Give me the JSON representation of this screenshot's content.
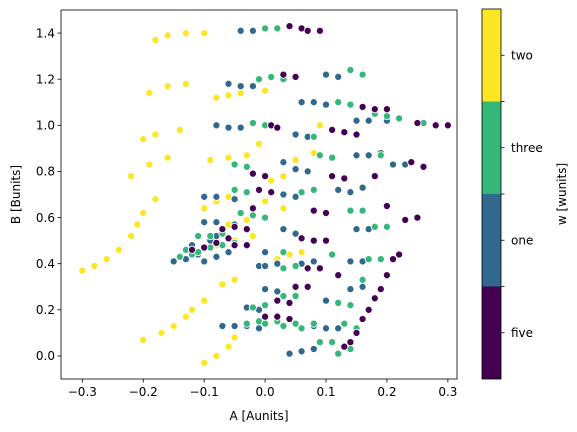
{
  "chart_data": {
    "type": "scatter",
    "title": "",
    "xlabel": "A [Aunits]",
    "ylabel": "B [Bunits]",
    "colorbar_label": "w [wunits]",
    "xlim": [
      -0.335,
      0.315
    ],
    "ylim": [
      -0.1,
      1.5
    ],
    "x_ticks": [
      -0.3,
      -0.2,
      -0.1,
      0.0,
      0.1,
      0.2,
      0.3
    ],
    "x_tick_labels": [
      "−0.3",
      "−0.2",
      "−0.1",
      "0.0",
      "0.1",
      "0.2",
      "0.3"
    ],
    "y_ticks": [
      0.0,
      0.2,
      0.4,
      0.6,
      0.8,
      1.0,
      1.2,
      1.4
    ],
    "y_tick_labels": [
      "0.0",
      "0.2",
      "0.4",
      "0.6",
      "0.8",
      "1.0",
      "1.2",
      "1.4"
    ],
    "grid": false,
    "marker_edge_color": "#ffffff",
    "categories": [
      "five",
      "one",
      "three",
      "two"
    ],
    "colors": {
      "five": "#440154",
      "one": "#31688e",
      "three": "#35b779",
      "two": "#fde725"
    },
    "series": [
      {
        "name": "two",
        "points": [
          [
            -0.3,
            0.37
          ],
          [
            -0.28,
            0.39
          ],
          [
            -0.26,
            0.42
          ],
          [
            -0.24,
            0.46
          ],
          [
            -0.22,
            0.52
          ],
          [
            -0.21,
            0.57
          ],
          [
            -0.2,
            0.62
          ],
          [
            -0.18,
            0.68
          ],
          [
            -0.22,
            0.78
          ],
          [
            -0.19,
            0.83
          ],
          [
            -0.16,
            0.86
          ],
          [
            -0.2,
            0.94
          ],
          [
            -0.18,
            0.96
          ],
          [
            -0.14,
            0.98
          ],
          [
            -0.19,
            1.14
          ],
          [
            -0.16,
            1.17
          ],
          [
            -0.13,
            1.18
          ],
          [
            -0.18,
            1.37
          ],
          [
            -0.16,
            1.39
          ],
          [
            -0.13,
            1.4
          ],
          [
            -0.1,
            1.4
          ],
          [
            -0.2,
            0.07
          ],
          [
            -0.17,
            0.1
          ],
          [
            -0.15,
            0.13
          ],
          [
            -0.13,
            0.17
          ],
          [
            -0.12,
            0.2
          ],
          [
            -0.1,
            0.24
          ],
          [
            -0.1,
            -0.03
          ],
          [
            -0.08,
            0.0
          ],
          [
            -0.06,
            0.04
          ],
          [
            -0.05,
            0.08
          ],
          [
            -0.07,
            0.31
          ],
          [
            -0.05,
            0.33
          ],
          [
            -0.08,
            0.48
          ],
          [
            -0.05,
            0.5
          ],
          [
            -0.02,
            0.52
          ],
          [
            -0.06,
            0.57
          ],
          [
            -0.03,
            0.59
          ],
          [
            -0.1,
            0.64
          ],
          [
            -0.08,
            0.67
          ],
          [
            -0.06,
            0.69
          ],
          [
            -0.09,
            0.85
          ],
          [
            -0.06,
            0.86
          ],
          [
            -0.03,
            0.87
          ],
          [
            -0.08,
            1.12
          ],
          [
            -0.06,
            1.13
          ],
          [
            -0.04,
            1.14
          ],
          [
            0.0,
            1.15
          ],
          [
            0.02,
            0.42
          ],
          [
            0.04,
            0.44
          ],
          [
            0.06,
            0.45
          ],
          [
            0.03,
            0.64
          ],
          [
            0.01,
            0.76
          ],
          [
            0.03,
            0.78
          ],
          [
            0.05,
            0.85
          ],
          [
            0.08,
            0.88
          ],
          [
            0.09,
            1.0
          ],
          [
            0.0,
            0.67
          ],
          [
            -0.01,
            0.92
          ]
        ]
      },
      {
        "name": "one",
        "points": [
          [
            -0.15,
            0.41
          ],
          [
            -0.13,
            0.42
          ],
          [
            -0.11,
            0.44
          ],
          [
            -0.12,
            0.48
          ],
          [
            -0.1,
            0.47
          ],
          [
            -0.09,
            0.5
          ],
          [
            -0.08,
            0.52
          ],
          [
            -0.1,
            0.41
          ],
          [
            -0.08,
            0.43
          ],
          [
            -0.06,
            0.45
          ],
          [
            -0.1,
            0.58
          ],
          [
            -0.08,
            0.58
          ],
          [
            -0.05,
            0.57
          ],
          [
            -0.1,
            0.69
          ],
          [
            -0.08,
            0.69
          ],
          [
            -0.05,
            0.68
          ],
          [
            -0.04,
            1.41
          ],
          [
            -0.02,
            1.41
          ],
          [
            -0.06,
            1.18
          ],
          [
            -0.04,
            1.17
          ],
          [
            -0.02,
            1.17
          ],
          [
            -0.08,
            1.0
          ],
          [
            -0.06,
            0.99
          ],
          [
            -0.04,
            0.99
          ],
          [
            -0.07,
            0.13
          ],
          [
            -0.05,
            0.13
          ],
          [
            -0.03,
            0.13
          ],
          [
            -0.01,
            0.12
          ],
          [
            -0.03,
            0.21
          ],
          [
            -0.01,
            0.2
          ],
          [
            0.0,
            0.29
          ],
          [
            0.02,
            0.28
          ],
          [
            -0.01,
            0.39
          ],
          [
            0.0,
            0.39
          ],
          [
            0.02,
            0.4
          ],
          [
            0.0,
            0.45
          ],
          [
            0.03,
            0.55
          ],
          [
            0.05,
            0.53
          ],
          [
            0.03,
            0.7
          ],
          [
            0.05,
            0.69
          ],
          [
            0.03,
            0.84
          ],
          [
            0.05,
            0.81
          ],
          [
            0.07,
            0.8
          ],
          [
            0.05,
            0.96
          ],
          [
            0.07,
            0.95
          ],
          [
            0.1,
            1.22
          ],
          [
            0.12,
            1.21
          ],
          [
            0.06,
            1.1
          ],
          [
            0.08,
            1.1
          ],
          [
            0.1,
            1.09
          ],
          [
            0.04,
            0.01
          ],
          [
            0.06,
            0.02
          ],
          [
            0.08,
            0.03
          ],
          [
            0.08,
            0.13
          ],
          [
            0.1,
            0.12
          ],
          [
            0.12,
            0.12
          ],
          [
            0.1,
            0.24
          ],
          [
            0.12,
            0.23
          ],
          [
            0.14,
            0.29
          ],
          [
            0.16,
            0.3
          ],
          [
            0.15,
            0.55
          ],
          [
            0.17,
            0.55
          ],
          [
            0.14,
            0.41
          ],
          [
            0.16,
            0.41
          ],
          [
            0.12,
            0.72
          ],
          [
            0.14,
            0.71
          ],
          [
            0.16,
            0.73
          ],
          [
            0.15,
            0.87
          ],
          [
            0.17,
            0.87
          ],
          [
            0.19,
            0.88
          ],
          [
            0.21,
            0.83
          ],
          [
            0.23,
            0.83
          ],
          [
            0.15,
            1.02
          ],
          [
            0.17,
            1.02
          ],
          [
            0.2,
            1.02
          ],
          [
            0.06,
            0.4
          ],
          [
            0.08,
            0.41
          ]
        ]
      },
      {
        "name": "three",
        "points": [
          [
            -0.14,
            0.43
          ],
          [
            -0.12,
            0.44
          ],
          [
            -0.11,
            0.45
          ],
          [
            -0.13,
            0.46
          ],
          [
            -0.09,
            0.47
          ],
          [
            -0.07,
            0.48
          ],
          [
            -0.05,
            0.49
          ],
          [
            -0.11,
            0.52
          ],
          [
            -0.09,
            0.52
          ],
          [
            -0.07,
            0.53
          ],
          [
            -0.04,
            0.62
          ],
          [
            -0.02,
            0.61
          ],
          [
            0.0,
            0.6
          ],
          [
            -0.05,
            0.72
          ],
          [
            -0.03,
            0.71
          ],
          [
            -0.05,
            0.83
          ],
          [
            -0.03,
            0.82
          ],
          [
            0.0,
            1.42
          ],
          [
            0.02,
            1.42
          ],
          [
            -0.01,
            1.2
          ],
          [
            0.01,
            1.21
          ],
          [
            0.03,
            1.2
          ],
          [
            -0.02,
            1.01
          ],
          [
            0.0,
            1.0
          ],
          [
            -0.03,
            0.14
          ],
          [
            -0.01,
            0.15
          ],
          [
            0.0,
            0.14
          ],
          [
            0.02,
            0.15
          ],
          [
            -0.02,
            0.21
          ],
          [
            0.0,
            0.22
          ],
          [
            0.03,
            0.13
          ],
          [
            0.05,
            0.14
          ],
          [
            0.03,
            0.26
          ],
          [
            0.05,
            0.26
          ],
          [
            0.03,
            0.38
          ],
          [
            0.05,
            0.39
          ],
          [
            0.03,
            0.45
          ],
          [
            0.06,
            0.71
          ],
          [
            0.08,
            0.72
          ],
          [
            0.09,
            0.87
          ],
          [
            0.11,
            0.86
          ],
          [
            0.08,
            0.95
          ],
          [
            0.12,
            1.1
          ],
          [
            0.14,
            1.09
          ],
          [
            0.14,
            1.24
          ],
          [
            0.16,
            1.22
          ],
          [
            0.09,
            0.06
          ],
          [
            0.11,
            0.06
          ],
          [
            0.12,
            0.01
          ],
          [
            0.14,
            0.03
          ],
          [
            0.13,
            0.14
          ],
          [
            0.15,
            0.12
          ],
          [
            0.12,
            0.23
          ],
          [
            0.14,
            0.22
          ],
          [
            0.16,
            0.33
          ],
          [
            0.17,
            0.42
          ],
          [
            0.19,
            0.42
          ],
          [
            0.14,
            0.63
          ],
          [
            0.16,
            0.63
          ],
          [
            0.18,
            0.56
          ],
          [
            0.2,
            0.56
          ],
          [
            0.18,
            1.05
          ],
          [
            0.2,
            1.04
          ],
          [
            0.22,
            1.03
          ],
          [
            0.26,
            1.01
          ],
          [
            0.19,
            0.87
          ],
          [
            0.11,
            0.44
          ],
          [
            0.06,
            0.12
          ],
          [
            0.08,
            0.14
          ]
        ]
      },
      {
        "name": "five",
        "points": [
          [
            -0.12,
            0.46
          ],
          [
            -0.1,
            0.47
          ],
          [
            -0.08,
            0.49
          ],
          [
            -0.06,
            0.51
          ],
          [
            -0.05,
            0.48
          ],
          [
            -0.03,
            0.48
          ],
          [
            -0.07,
            0.55
          ],
          [
            -0.05,
            0.56
          ],
          [
            -0.03,
            0.55
          ],
          [
            -0.02,
            0.64
          ],
          [
            -0.01,
            0.72
          ],
          [
            0.01,
            0.71
          ],
          [
            -0.02,
            0.79
          ],
          [
            0.0,
            0.78
          ],
          [
            0.01,
            1.0
          ],
          [
            0.02,
            0.99
          ],
          [
            0.03,
            1.22
          ],
          [
            0.05,
            1.21
          ],
          [
            0.04,
            1.43
          ],
          [
            0.06,
            1.42
          ],
          [
            0.07,
            1.41
          ],
          [
            0.09,
            1.41
          ],
          [
            0.0,
            0.17
          ],
          [
            0.02,
            0.17
          ],
          [
            0.04,
            0.16
          ],
          [
            0.02,
            0.24
          ],
          [
            0.04,
            0.23
          ],
          [
            0.05,
            0.3
          ],
          [
            0.07,
            0.3
          ],
          [
            0.07,
            0.38
          ],
          [
            0.09,
            0.38
          ],
          [
            0.06,
            0.51
          ],
          [
            0.08,
            0.5
          ],
          [
            0.1,
            0.5
          ],
          [
            0.08,
            0.63
          ],
          [
            0.1,
            0.62
          ],
          [
            0.11,
            0.78
          ],
          [
            0.13,
            0.77
          ],
          [
            0.11,
            0.98
          ],
          [
            0.13,
            0.97
          ],
          [
            0.15,
            0.96
          ],
          [
            0.16,
            1.08
          ],
          [
            0.18,
            1.07
          ],
          [
            0.2,
            1.07
          ],
          [
            0.13,
            0.04
          ],
          [
            0.14,
            0.06
          ],
          [
            0.15,
            0.1
          ],
          [
            0.16,
            0.16
          ],
          [
            0.17,
            0.2
          ],
          [
            0.18,
            0.25
          ],
          [
            0.19,
            0.29
          ],
          [
            0.2,
            0.35
          ],
          [
            0.21,
            0.42
          ],
          [
            0.22,
            0.44
          ],
          [
            0.23,
            0.59
          ],
          [
            0.25,
            0.6
          ],
          [
            0.24,
            0.84
          ],
          [
            0.26,
            0.82
          ],
          [
            0.25,
            1.01
          ],
          [
            0.28,
            1.0
          ],
          [
            0.3,
            1.0
          ],
          [
            0.2,
            0.65
          ],
          [
            0.18,
            0.78
          ],
          [
            0.12,
            0.35
          ]
        ]
      }
    ]
  }
}
